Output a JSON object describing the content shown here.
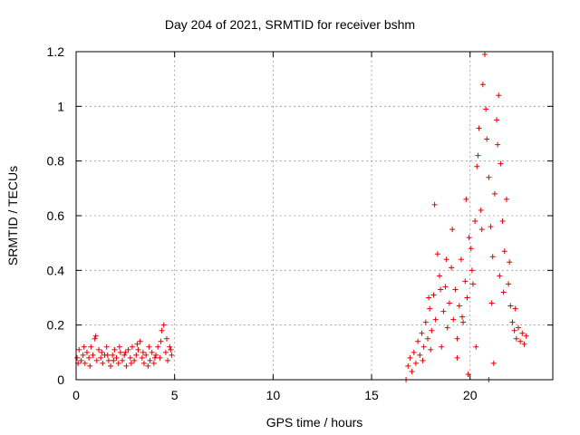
{
  "chart_data": {
    "type": "scatter",
    "title": "Day 204 of 2021, SRMTID for receiver bshm",
    "xlabel": "GPS time / hours",
    "ylabel": "SRMTID / TECUs",
    "xlim": [
      0,
      24.2
    ],
    "ylim": [
      0,
      1.2
    ],
    "x_ticks": [
      0,
      5,
      10,
      15,
      20
    ],
    "x_tick_labels": [
      "0",
      "5",
      "10",
      "15",
      "20"
    ],
    "y_ticks": [
      0,
      0.2,
      0.4,
      0.6,
      0.8,
      1.0,
      1.2
    ],
    "y_tick_labels": [
      "0",
      "0.2",
      "0.4",
      "0.6",
      "0.8",
      "1",
      "1.2"
    ],
    "grid": true,
    "marker": "+",
    "series": [
      {
        "name": "SRMTID",
        "color": "#e00000",
        "points": [
          [
            0.05,
            0.08
          ],
          [
            0.15,
            0.11
          ],
          [
            0.25,
            0.07
          ],
          [
            0.35,
            0.09
          ],
          [
            0.45,
            0.06
          ],
          [
            0.55,
            0.1
          ],
          [
            0.65,
            0.08
          ],
          [
            0.75,
            0.12
          ],
          [
            0.85,
            0.09
          ],
          [
            0.95,
            0.15
          ],
          [
            1.05,
            0.07
          ],
          [
            1.15,
            0.11
          ],
          [
            1.25,
            0.08
          ],
          [
            1.35,
            0.06
          ],
          [
            1.45,
            0.09
          ],
          [
            1.55,
            0.12
          ],
          [
            1.65,
            0.07
          ],
          [
            1.75,
            0.05
          ],
          [
            1.85,
            0.09
          ],
          [
            1.95,
            0.11
          ],
          [
            2.05,
            0.08
          ],
          [
            2.15,
            0.06
          ],
          [
            2.25,
            0.1
          ],
          [
            2.35,
            0.07
          ],
          [
            2.45,
            0.09
          ],
          [
            2.55,
            0.05
          ],
          [
            2.65,
            0.11
          ],
          [
            2.75,
            0.08
          ],
          [
            2.85,
            0.12
          ],
          [
            2.95,
            0.07
          ],
          [
            3.05,
            0.09
          ],
          [
            3.15,
            0.11
          ],
          [
            3.25,
            0.14
          ],
          [
            3.35,
            0.08
          ],
          [
            3.45,
            0.06
          ],
          [
            3.55,
            0.09
          ],
          [
            3.65,
            0.05
          ],
          [
            3.75,
            0.07
          ],
          [
            3.85,
            0.1
          ],
          [
            3.95,
            0.06
          ],
          [
            4.05,
            0.09
          ],
          [
            4.15,
            0.12
          ],
          [
            4.25,
            0.08
          ],
          [
            4.35,
            0.18
          ],
          [
            4.45,
            0.2
          ],
          [
            4.55,
            0.1
          ],
          [
            4.65,
            0.07
          ],
          [
            4.75,
            0.12
          ],
          [
            4.85,
            0.09
          ],
          [
            0.1,
            0.06
          ],
          [
            0.4,
            0.12
          ],
          [
            0.7,
            0.05
          ],
          [
            1.0,
            0.16
          ],
          [
            1.3,
            0.1
          ],
          [
            1.6,
            0.09
          ],
          [
            1.9,
            0.07
          ],
          [
            2.2,
            0.12
          ],
          [
            2.5,
            0.1
          ],
          [
            2.8,
            0.06
          ],
          [
            3.1,
            0.13
          ],
          [
            3.4,
            0.1
          ],
          [
            3.7,
            0.12
          ],
          [
            4.0,
            0.08
          ],
          [
            4.3,
            0.14
          ],
          [
            4.6,
            0.15
          ],
          [
            4.8,
            0.11
          ],
          [
            16.75,
            0.0
          ],
          [
            16.85,
            0.05
          ],
          [
            16.95,
            0.08
          ],
          [
            17.05,
            0.03
          ],
          [
            17.15,
            0.1
          ],
          [
            17.25,
            0.06
          ],
          [
            17.35,
            0.14
          ],
          [
            17.45,
            0.09
          ],
          [
            17.55,
            0.17
          ],
          [
            17.65,
            0.12
          ],
          [
            17.75,
            0.21
          ],
          [
            17.85,
            0.15
          ],
          [
            17.95,
            0.26
          ],
          [
            18.05,
            0.18
          ],
          [
            18.15,
            0.31
          ],
          [
            18.25,
            0.22
          ],
          [
            18.35,
            0.46
          ],
          [
            18.45,
            0.38
          ],
          [
            18.55,
            0.12
          ],
          [
            18.65,
            0.25
          ],
          [
            18.75,
            0.34
          ],
          [
            18.85,
            0.19
          ],
          [
            18.95,
            0.28
          ],
          [
            19.05,
            0.41
          ],
          [
            19.15,
            0.22
          ],
          [
            19.25,
            0.33
          ],
          [
            19.35,
            0.15
          ],
          [
            19.45,
            0.27
          ],
          [
            19.55,
            0.44
          ],
          [
            19.65,
            0.21
          ],
          [
            19.75,
            0.36
          ],
          [
            19.85,
            0.3
          ],
          [
            19.95,
            0.52
          ],
          [
            20.05,
            0.48
          ],
          [
            20.15,
            0.35
          ],
          [
            20.25,
            0.58
          ],
          [
            20.35,
            0.78
          ],
          [
            20.45,
            0.92
          ],
          [
            20.55,
            0.62
          ],
          [
            20.65,
            1.08
          ],
          [
            20.75,
            1.19
          ],
          [
            20.85,
            0.88
          ],
          [
            20.95,
            0.74
          ],
          [
            21.05,
            0.56
          ],
          [
            21.15,
            0.45
          ],
          [
            21.25,
            0.68
          ],
          [
            21.35,
            0.95
          ],
          [
            21.45,
            1.04
          ],
          [
            21.55,
            0.79
          ],
          [
            21.65,
            0.58
          ],
          [
            21.75,
            0.47
          ],
          [
            21.85,
            0.66
          ],
          [
            21.95,
            0.35
          ],
          [
            22.05,
            0.27
          ],
          [
            22.15,
            0.21
          ],
          [
            22.25,
            0.18
          ],
          [
            22.35,
            0.15
          ],
          [
            22.45,
            0.19
          ],
          [
            22.55,
            0.14
          ],
          [
            22.65,
            0.17
          ],
          [
            22.75,
            0.13
          ],
          [
            22.85,
            0.16
          ],
          [
            18.2,
            0.64
          ],
          [
            18.5,
            0.33
          ],
          [
            19.1,
            0.55
          ],
          [
            19.6,
            0.23
          ],
          [
            20.1,
            0.4
          ],
          [
            20.4,
            0.82
          ],
          [
            20.8,
            0.99
          ],
          [
            21.1,
            0.28
          ],
          [
            21.4,
            0.86
          ],
          [
            21.7,
            0.32
          ],
          [
            22.0,
            0.43
          ],
          [
            22.3,
            0.26
          ],
          [
            17.9,
            0.3
          ],
          [
            18.8,
            0.44
          ],
          [
            19.8,
            0.66
          ],
          [
            20.6,
            0.55
          ],
          [
            20.95,
            0.0
          ],
          [
            21.5,
            0.38
          ],
          [
            19.35,
            0.08
          ],
          [
            19.9,
            0.02
          ],
          [
            20.3,
            0.12
          ],
          [
            21.2,
            0.06
          ],
          [
            17.6,
            0.07
          ],
          [
            18.0,
            0.11
          ]
        ]
      }
    ]
  }
}
